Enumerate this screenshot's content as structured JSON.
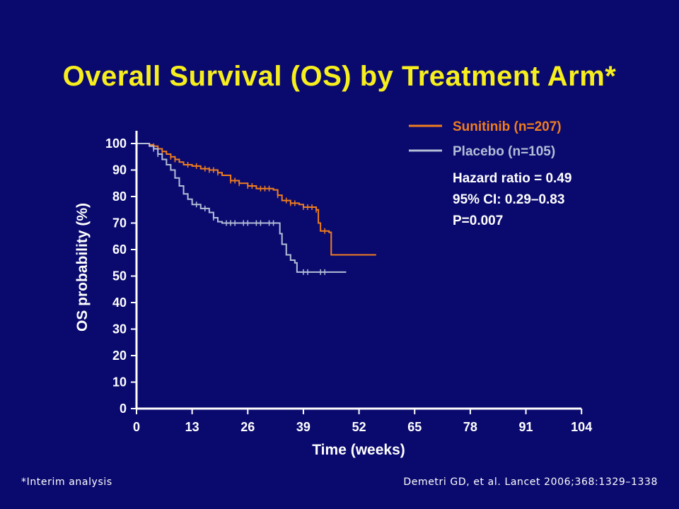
{
  "chart_data": {
    "type": "line",
    "title": "Overall Survival (OS) by Treatment Arm*",
    "xlabel": "Time (weeks)",
    "ylabel": "OS probability (%)",
    "xlim": [
      0,
      104
    ],
    "ylim": [
      0,
      100
    ],
    "x_ticks": [
      "0",
      "13",
      "26",
      "39",
      "52",
      "65",
      "78",
      "91",
      "104"
    ],
    "y_ticks": [
      "0",
      "10",
      "20",
      "30",
      "40",
      "50",
      "60",
      "70",
      "80",
      "90",
      "100"
    ],
    "grid": false,
    "legend_position": "top-right",
    "series": [
      {
        "name": "Sunitinib (n=207)",
        "color": "#f07d1e",
        "step": true,
        "points": [
          [
            0,
            100
          ],
          [
            2,
            100
          ],
          [
            3,
            99.5
          ],
          [
            4,
            99
          ],
          [
            5,
            98
          ],
          [
            6,
            97
          ],
          [
            7,
            96
          ],
          [
            8,
            95
          ],
          [
            9,
            94
          ],
          [
            10,
            93
          ],
          [
            11,
            92
          ],
          [
            13,
            91.5
          ],
          [
            15,
            90.5
          ],
          [
            17,
            90
          ],
          [
            19,
            89
          ],
          [
            20,
            88
          ],
          [
            22,
            86
          ],
          [
            24,
            85
          ],
          [
            26,
            84
          ],
          [
            28,
            83
          ],
          [
            32,
            82.5
          ],
          [
            33,
            80.5
          ],
          [
            34,
            78.5
          ],
          [
            36,
            77.5
          ],
          [
            38,
            77
          ],
          [
            39,
            76
          ],
          [
            42,
            75
          ],
          [
            42.5,
            70
          ],
          [
            43,
            67
          ],
          [
            45,
            66.5
          ],
          [
            45.5,
            58
          ],
          [
            56,
            58
          ]
        ],
        "censor_marks_at_weeks": [
          4,
          6,
          8,
          9,
          12,
          14,
          16,
          17,
          18,
          19,
          22,
          23,
          24,
          26,
          27,
          29,
          30,
          31,
          33,
          35,
          36,
          37,
          39,
          40,
          41,
          42,
          44
        ]
      },
      {
        "name": "Placebo (n=105)",
        "color": "#b4bed7",
        "step": true,
        "points": [
          [
            0,
            100
          ],
          [
            3,
            99
          ],
          [
            4,
            98
          ],
          [
            5,
            96
          ],
          [
            6,
            94
          ],
          [
            7,
            92
          ],
          [
            8,
            90
          ],
          [
            9,
            87
          ],
          [
            10,
            84
          ],
          [
            11,
            81
          ],
          [
            12,
            79
          ],
          [
            13,
            77
          ],
          [
            15,
            75.5
          ],
          [
            17,
            74
          ],
          [
            18,
            72
          ],
          [
            19,
            70.5
          ],
          [
            20,
            70
          ],
          [
            33,
            70
          ],
          [
            33.5,
            66
          ],
          [
            34,
            62
          ],
          [
            35,
            58
          ],
          [
            36,
            56
          ],
          [
            37,
            55
          ],
          [
            37.5,
            51.5
          ],
          [
            49,
            51.5
          ]
        ],
        "censor_marks_at_weeks": [
          4,
          5,
          14,
          16,
          18,
          21,
          22,
          23,
          25,
          26,
          28,
          29,
          31,
          32,
          39,
          40,
          43,
          44
        ]
      }
    ],
    "annotations": [
      "Hazard ratio = 0.49",
      "95% CI: 0.29–0.83",
      "P=0.007"
    ]
  },
  "footnote": "*Interim analysis",
  "citation": "Demetri GD, et al. Lancet 2006;368:1329–1338"
}
